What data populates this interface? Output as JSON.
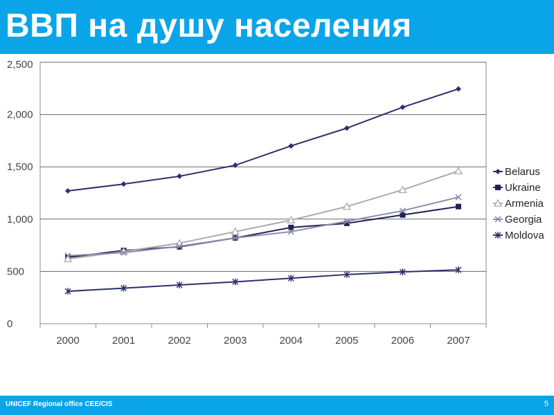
{
  "slide": {
    "title": "ВВП на душу населения",
    "footer": "UNICEF Regional office CEE/CIS",
    "page_number": "5",
    "accent_color": "#0aa5e8"
  },
  "chart_data": {
    "type": "line",
    "title": "",
    "xlabel": "",
    "ylabel": "",
    "x": [
      "2000",
      "2001",
      "2002",
      "2003",
      "2004",
      "2005",
      "2006",
      "2007"
    ],
    "ylim": [
      0,
      2500
    ],
    "yticks": [
      0,
      500,
      1000,
      1500,
      2000,
      2500
    ],
    "ytick_labels": [
      "0",
      "500",
      "1,000",
      "1,500",
      "2,000",
      "2,500"
    ],
    "grid": "horizontal",
    "legend_position": "right",
    "series": [
      {
        "name": "Belarus",
        "color": "#2a2f6b",
        "marker": "diamond",
        "values": [
          1270,
          1335,
          1410,
          1515,
          1700,
          1870,
          2070,
          2245
        ]
      },
      {
        "name": "Ukraine",
        "color": "#1e2255",
        "marker": "square",
        "values": [
          635,
          700,
          735,
          820,
          920,
          960,
          1040,
          1120
        ]
      },
      {
        "name": "Armenia",
        "color": "#aaaaaa",
        "marker": "triangle",
        "values": [
          620,
          690,
          770,
          880,
          990,
          1120,
          1280,
          1460
        ]
      },
      {
        "name": "Georgia",
        "color": "#8a8ca8",
        "marker": "x",
        "values": [
          650,
          680,
          740,
          820,
          880,
          980,
          1080,
          1210
        ]
      },
      {
        "name": "Moldova",
        "color": "#2a2f6b",
        "marker": "star",
        "values": [
          310,
          340,
          370,
          400,
          435,
          470,
          495,
          515
        ]
      }
    ]
  }
}
